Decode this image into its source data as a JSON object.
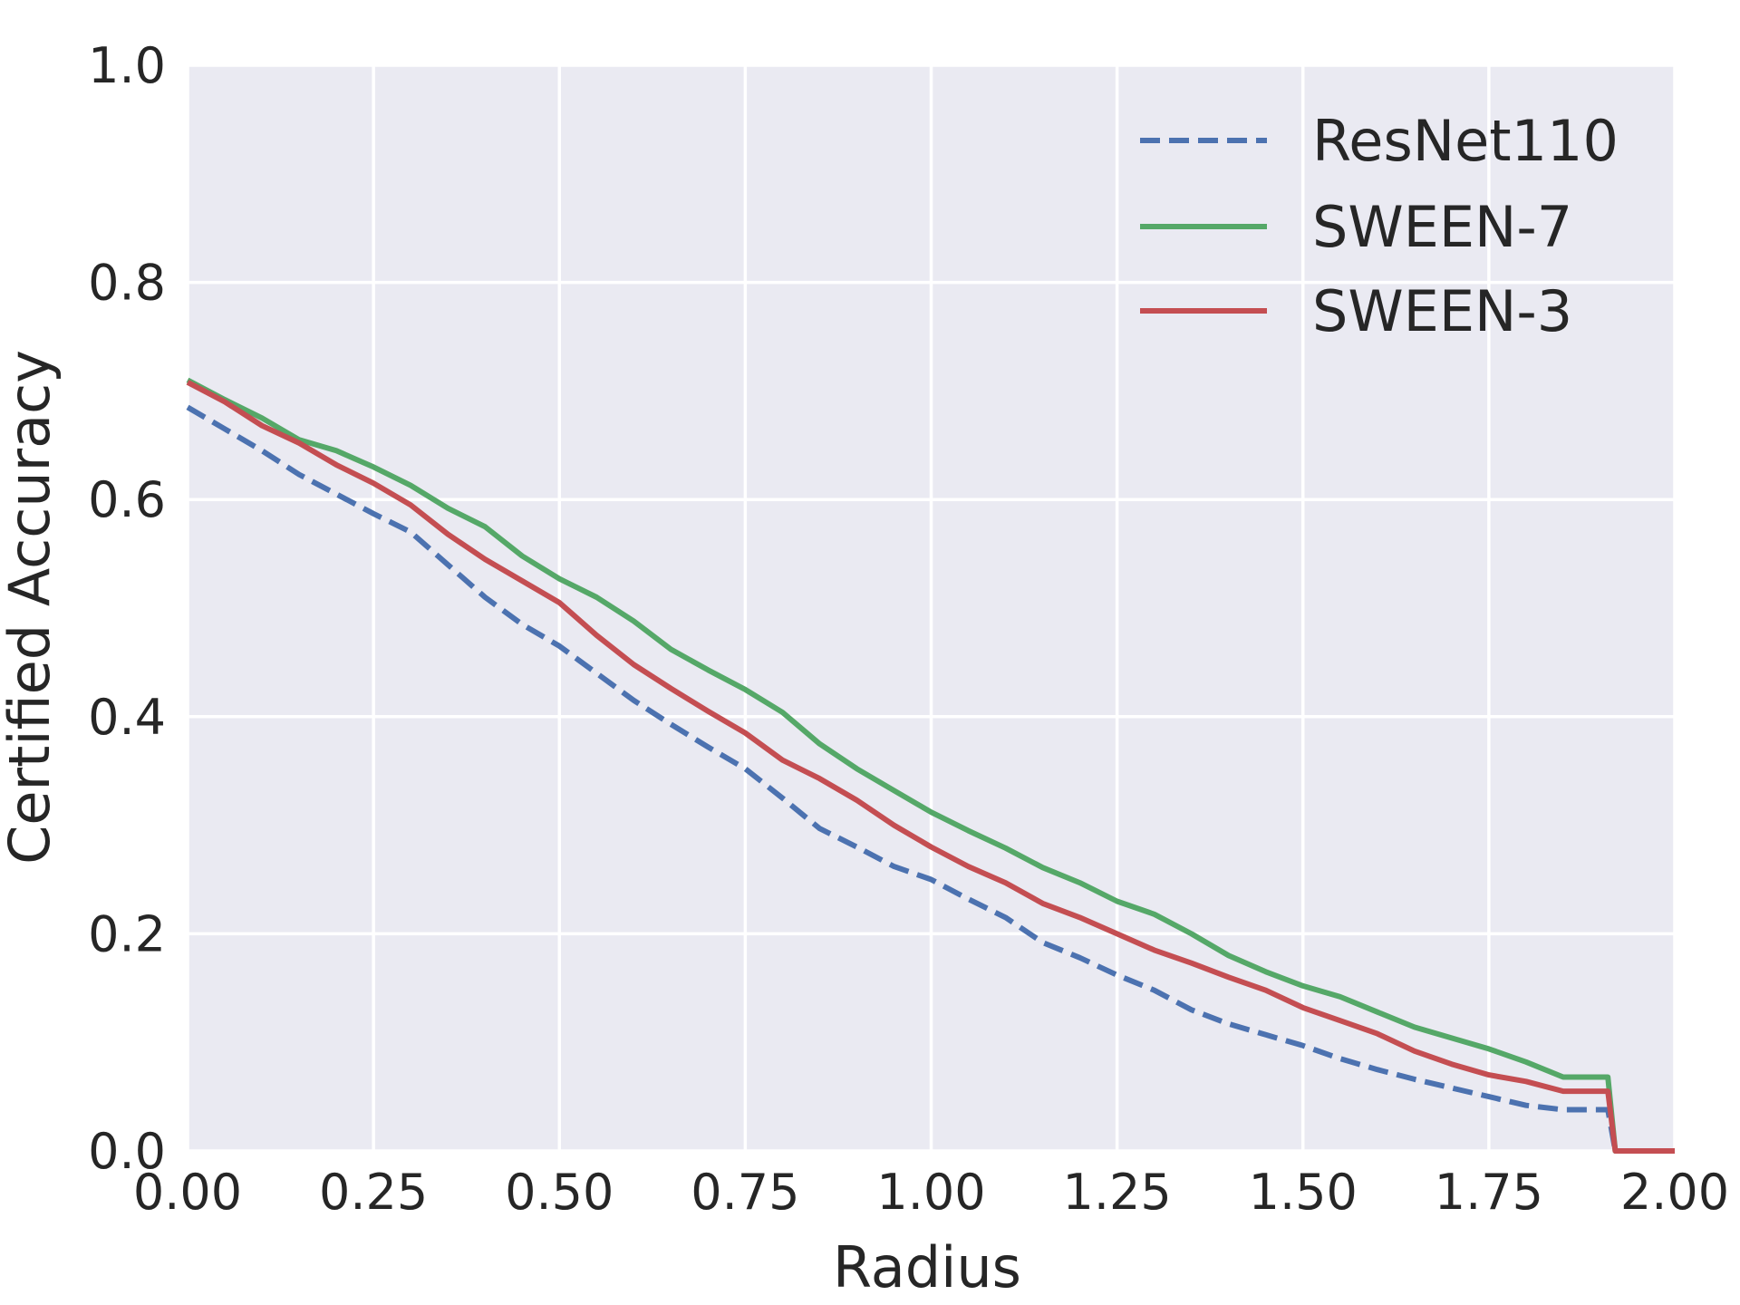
{
  "chart_data": {
    "type": "line",
    "title": "",
    "xlabel": "Radius",
    "ylabel": "Certified Accuracy",
    "xlim": [
      0.0,
      2.0
    ],
    "ylim": [
      0.0,
      1.0
    ],
    "xticks": [
      "0.00",
      "0.25",
      "0.50",
      "0.75",
      "1.00",
      "1.25",
      "1.50",
      "1.75",
      "2.00"
    ],
    "yticks": [
      "0.0",
      "0.2",
      "0.4",
      "0.6",
      "0.8",
      "1.0"
    ],
    "grid": true,
    "legend_position": "top-right",
    "colors": {
      "background": "#eaeaf2",
      "grid": "#ffffff",
      "text": "#262626"
    },
    "series": [
      {
        "name": "ResNet110",
        "color": "#4c72b0",
        "style": "dashed",
        "x": [
          0.0,
          0.05,
          0.1,
          0.15,
          0.2,
          0.25,
          0.3,
          0.35,
          0.4,
          0.45,
          0.5,
          0.55,
          0.6,
          0.65,
          0.7,
          0.75,
          0.8,
          0.85,
          0.9,
          0.95,
          1.0,
          1.05,
          1.1,
          1.15,
          1.2,
          1.25,
          1.3,
          1.35,
          1.4,
          1.45,
          1.5,
          1.55,
          1.6,
          1.65,
          1.7,
          1.75,
          1.8,
          1.85,
          1.9,
          1.91,
          1.92,
          2.0
        ],
        "y": [
          0.685,
          0.665,
          0.645,
          0.623,
          0.605,
          0.587,
          0.57,
          0.54,
          0.51,
          0.485,
          0.465,
          0.44,
          0.415,
          0.393,
          0.372,
          0.352,
          0.325,
          0.297,
          0.28,
          0.262,
          0.25,
          0.232,
          0.215,
          0.192,
          0.178,
          0.162,
          0.148,
          0.13,
          0.117,
          0.107,
          0.097,
          0.085,
          0.075,
          0.066,
          0.058,
          0.05,
          0.042,
          0.038,
          0.038,
          0.038,
          0.0,
          0.0
        ]
      },
      {
        "name": "SWEEN-7",
        "color": "#55a868",
        "style": "solid",
        "x": [
          0.0,
          0.05,
          0.1,
          0.15,
          0.2,
          0.25,
          0.3,
          0.35,
          0.4,
          0.45,
          0.5,
          0.55,
          0.6,
          0.65,
          0.7,
          0.75,
          0.8,
          0.85,
          0.9,
          0.95,
          1.0,
          1.05,
          1.1,
          1.15,
          1.2,
          1.25,
          1.3,
          1.35,
          1.4,
          1.45,
          1.5,
          1.55,
          1.6,
          1.65,
          1.7,
          1.75,
          1.8,
          1.85,
          1.9,
          1.91,
          1.92,
          2.0
        ],
        "y": [
          0.71,
          0.692,
          0.675,
          0.655,
          0.645,
          0.63,
          0.613,
          0.592,
          0.575,
          0.548,
          0.527,
          0.51,
          0.488,
          0.462,
          0.443,
          0.425,
          0.404,
          0.375,
          0.352,
          0.332,
          0.312,
          0.295,
          0.279,
          0.261,
          0.247,
          0.23,
          0.218,
          0.2,
          0.18,
          0.165,
          0.152,
          0.142,
          0.128,
          0.114,
          0.104,
          0.094,
          0.082,
          0.068,
          0.068,
          0.068,
          0.0,
          0.0
        ]
      },
      {
        "name": "SWEEN-3",
        "color": "#c44e52",
        "style": "solid",
        "x": [
          0.0,
          0.05,
          0.1,
          0.15,
          0.2,
          0.25,
          0.3,
          0.35,
          0.4,
          0.45,
          0.5,
          0.55,
          0.6,
          0.65,
          0.7,
          0.75,
          0.8,
          0.85,
          0.9,
          0.95,
          1.0,
          1.05,
          1.1,
          1.15,
          1.2,
          1.25,
          1.3,
          1.35,
          1.4,
          1.45,
          1.5,
          1.55,
          1.6,
          1.65,
          1.7,
          1.75,
          1.8,
          1.85,
          1.9,
          1.91,
          1.92,
          2.0
        ],
        "y": [
          0.708,
          0.69,
          0.668,
          0.652,
          0.632,
          0.615,
          0.595,
          0.568,
          0.545,
          0.525,
          0.505,
          0.475,
          0.448,
          0.426,
          0.405,
          0.385,
          0.36,
          0.343,
          0.323,
          0.3,
          0.28,
          0.262,
          0.247,
          0.228,
          0.215,
          0.2,
          0.185,
          0.173,
          0.16,
          0.148,
          0.132,
          0.12,
          0.108,
          0.092,
          0.08,
          0.07,
          0.064,
          0.055,
          0.055,
          0.055,
          0.0,
          0.0
        ]
      }
    ]
  }
}
